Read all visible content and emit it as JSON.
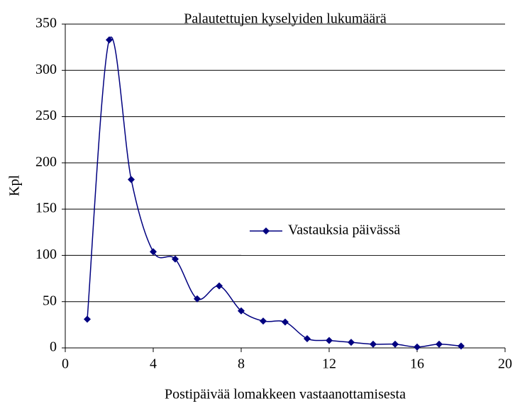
{
  "chart_data": {
    "type": "line",
    "title": "Palautettujen kyselyiden lukumäärä",
    "xlabel": "Postipäivää lomakkeen vastaanottamisesta",
    "ylabel": "Kpl",
    "x": [
      1,
      2,
      3,
      4,
      5,
      6,
      7,
      8,
      9,
      10,
      11,
      12,
      13,
      14,
      15,
      16,
      17,
      18
    ],
    "series": [
      {
        "name": "Vastauksia päivässä",
        "color": "#000080",
        "values": [
          31,
          333,
          182,
          104,
          96,
          53,
          67,
          40,
          29,
          28,
          10,
          8,
          6,
          4,
          4,
          1,
          4,
          2
        ]
      }
    ],
    "xlim": [
      0,
      20
    ],
    "xticks": [
      0,
      4,
      8,
      12,
      16,
      20
    ],
    "ylim": [
      0,
      350
    ],
    "yticks": [
      0,
      50,
      100,
      150,
      200,
      250,
      300,
      350
    ],
    "grid": true,
    "legend": "right",
    "smooth": true
  }
}
